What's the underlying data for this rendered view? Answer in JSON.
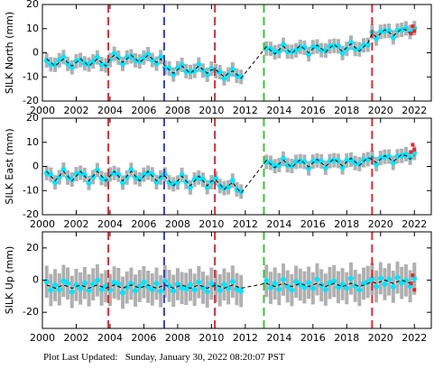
{
  "chart_data": [
    {
      "type": "scatter",
      "ylabel": "SILK North (mm)",
      "xlim": [
        2000,
        2023
      ],
      "xticks": [
        2000,
        2002,
        2004,
        2006,
        2008,
        2010,
        2012,
        2014,
        2016,
        2018,
        2020,
        2022
      ],
      "ylim": [
        -20,
        20
      ],
      "yticks": [
        -20,
        -10,
        0,
        10,
        20
      ],
      "vlines": [
        {
          "x": 2003.9,
          "color": "#e8262b"
        },
        {
          "x": 2007.2,
          "color": "#3340d0"
        },
        {
          "x": 2010.2,
          "color": "#e8262b"
        },
        {
          "x": 2013.1,
          "color": "#3ac43a"
        },
        {
          "x": 2019.5,
          "color": "#e8262b"
        }
      ],
      "x": [
        2000.25,
        2000.5,
        2000.75,
        2001,
        2001.25,
        2001.5,
        2001.75,
        2002,
        2002.25,
        2002.5,
        2002.75,
        2003,
        2003.25,
        2003.5,
        2003.75,
        2004,
        2004.25,
        2004.5,
        2004.75,
        2005,
        2005.25,
        2005.5,
        2005.75,
        2006,
        2006.25,
        2006.5,
        2006.75,
        2007,
        2007.25,
        2007.5,
        2007.75,
        2008,
        2008.25,
        2008.5,
        2008.75,
        2009,
        2009.25,
        2009.5,
        2009.75,
        2010,
        2010.25,
        2010.5,
        2010.75,
        2011,
        2011.25,
        2011.5,
        2011.75,
        2013.25,
        2013.5,
        2013.75,
        2014,
        2014.25,
        2014.5,
        2014.75,
        2015,
        2015.25,
        2015.5,
        2015.75,
        2016,
        2016.25,
        2016.5,
        2016.75,
        2017,
        2017.25,
        2017.5,
        2017.75,
        2018,
        2018.25,
        2018.5,
        2018.75,
        2019,
        2019.25,
        2019.5,
        2019.75,
        2020,
        2020.25,
        2020.5,
        2020.75,
        2021,
        2021.25,
        2021.5,
        2021.75,
        2022
      ],
      "series": [
        {
          "color": "#00e5ff",
          "error": 3,
          "values": [
            -3.2,
            -4.8,
            -5.0,
            -3.1,
            -1.8,
            -4.6,
            -6.0,
            -3.5,
            -3.0,
            -4.4,
            -4.9,
            -3.6,
            -1.9,
            -4.7,
            -5.2,
            -3.0,
            -0.4,
            -2.0,
            -4.6,
            -1.9,
            -1.5,
            -3.1,
            -3.6,
            -2.0,
            -0.6,
            -3.0,
            -4.5,
            -1.8,
            -6.1,
            -6.5,
            -9.0,
            -6.4,
            -5.0,
            -7.6,
            -8.0,
            -7.5,
            -4.9,
            -7.4,
            -9.1,
            -6.6,
            -7.6,
            -8.0,
            -10.6,
            -9.0,
            -6.9,
            -9.5,
            -10.0,
            1.8,
            1.6,
            0.2,
            0.7,
            3.3,
            0.5,
            0.4,
            1.0,
            2.4,
            2.1,
            -0.6,
            2.3,
            2.6,
            1.1,
            0.9,
            2.6,
            2.9,
            2.7,
            -0.1,
            1.6,
            4.2,
            1.6,
            1.4,
            3.1,
            3.3,
            8.6,
            5.9,
            8.7,
            9.0,
            9.1,
            6.4,
            9.2,
            9.5,
            10.1,
            8.6,
            10.2
          ]
        },
        {
          "type": "line",
          "color": "#000000",
          "values": [
            -2.5,
            -4,
            -5.5,
            -4,
            -2.5,
            -4,
            -5.5,
            -4,
            -2.5,
            -4,
            -5.5,
            -4,
            -2.5,
            -4,
            -5.5,
            -2.5,
            -1,
            -2.5,
            -4,
            -2.5,
            -1,
            -2.5,
            -4,
            -2.5,
            -1,
            -2.5,
            -4,
            -2.5,
            -5.5,
            -7,
            -8.5,
            -7,
            -5.5,
            -7,
            -8.5,
            -7,
            -5.5,
            -7,
            -8.5,
            -7,
            -7,
            -8.5,
            -10,
            -8.5,
            -7.5,
            -9,
            -10.5,
            2.5,
            1,
            -0.5,
            1.2,
            2.7,
            1.2,
            -0.3,
            1.5,
            3,
            1.5,
            0,
            1.7,
            3.2,
            1.7,
            0.2,
            2,
            3.5,
            2,
            0.5,
            2.2,
            3.7,
            2.2,
            0.7,
            2.5,
            4,
            8,
            6.5,
            8,
            9.5,
            8.5,
            7,
            8.5,
            10,
            9.5,
            8,
            9.5
          ]
        }
      ],
      "recent": {
        "color": "#e8262b",
        "x": [
          2021.8,
          2021.9,
          2022.0
        ],
        "values": [
          8,
          11,
          9
        ]
      }
    },
    {
      "type": "scatter",
      "ylabel": "SILK East (mm)",
      "xlim": [
        2000,
        2023
      ],
      "xticks": [
        2000,
        2002,
        2004,
        2006,
        2008,
        2010,
        2012,
        2014,
        2016,
        2018,
        2020,
        2022
      ],
      "ylim": [
        -20,
        20
      ],
      "yticks": [
        -20,
        -10,
        0,
        10,
        20
      ],
      "vlines": [
        {
          "x": 2003.9,
          "color": "#e8262b"
        },
        {
          "x": 2007.2,
          "color": "#3340d0"
        },
        {
          "x": 2010.2,
          "color": "#e8262b"
        },
        {
          "x": 2013.1,
          "color": "#3ac43a"
        },
        {
          "x": 2019.5,
          "color": "#e8262b"
        }
      ],
      "x": [
        2000.25,
        2000.5,
        2000.75,
        2001,
        2001.25,
        2001.5,
        2001.75,
        2002,
        2002.25,
        2002.5,
        2002.75,
        2003,
        2003.25,
        2003.5,
        2003.75,
        2004,
        2004.25,
        2004.5,
        2004.75,
        2005,
        2005.25,
        2005.5,
        2005.75,
        2006,
        2006.25,
        2006.5,
        2006.75,
        2007,
        2007.25,
        2007.5,
        2007.75,
        2008,
        2008.25,
        2008.5,
        2008.75,
        2009,
        2009.25,
        2009.5,
        2009.75,
        2010,
        2010.25,
        2010.5,
        2010.75,
        2011,
        2011.25,
        2011.5,
        2011.75,
        2013.25,
        2013.5,
        2013.75,
        2014,
        2014.25,
        2014.5,
        2014.75,
        2015,
        2015.25,
        2015.5,
        2015.75,
        2016,
        2016.25,
        2016.5,
        2016.75,
        2017,
        2017.25,
        2017.5,
        2017.75,
        2018,
        2018.25,
        2018.5,
        2018.75,
        2019,
        2019.25,
        2019.5,
        2019.75,
        2020,
        2020.25,
        2020.5,
        2020.75,
        2021,
        2021.25,
        2021.5,
        2021.75,
        2022
      ],
      "series": [
        {
          "color": "#00e5ff",
          "error": 3,
          "values": [
            -2.7,
            -3.4,
            -6.6,
            -4.5,
            -1.3,
            -4.6,
            -5.4,
            -3.2,
            -2.6,
            -3.5,
            -6.8,
            -4.4,
            -1.5,
            -4.8,
            -5.5,
            -3.3,
            -2.7,
            -3.4,
            -6.7,
            -4.6,
            -1.4,
            -4.5,
            -5.3,
            -3.4,
            -2.6,
            -3.3,
            -6.5,
            -4.6,
            -3.3,
            -6.6,
            -7.4,
            -6.7,
            -3.5,
            -6.4,
            -8.7,
            -5.4,
            -4.6,
            -5.5,
            -8.6,
            -6.5,
            -4.9,
            -8.1,
            -9.0,
            -8.6,
            -5.9,
            -9.5,
            -10.4,
            1.9,
            1.5,
            0.1,
            0.6,
            3.2,
            0.5,
            0.2,
            1.9,
            2.2,
            1.9,
            -0.8,
            2.0,
            2.5,
            2.1,
            -0.5,
            2.2,
            2.6,
            2.3,
            -0.4,
            2.5,
            2.8,
            1.4,
            1.0,
            2.6,
            3.0,
            3.6,
            0.9,
            3.5,
            4.0,
            4.1,
            1.5,
            4.2,
            4.4,
            5.1,
            3.6,
            5.6
          ]
        },
        {
          "type": "line",
          "color": "#000000",
          "values": [
            -2,
            -4,
            -6,
            -4,
            -2,
            -4,
            -6,
            -4,
            -2,
            -4,
            -6,
            -4,
            -2,
            -4,
            -6,
            -4,
            -2,
            -4,
            -6,
            -4,
            -2,
            -4,
            -6,
            -4,
            -2,
            -4,
            -6,
            -4,
            -4,
            -6,
            -8,
            -6,
            -4,
            -6,
            -8,
            -6,
            -4,
            -6,
            -8,
            -6,
            -5.5,
            -7.5,
            -9.5,
            -8,
            -6.5,
            -9,
            -11,
            2.5,
            1,
            -0.5,
            1.1,
            2.6,
            1.1,
            -0.4,
            1.3,
            2.8,
            1.3,
            -0.2,
            1.5,
            3,
            1.5,
            0,
            1.7,
            3.2,
            1.7,
            0.2,
            1.9,
            3.4,
            1.9,
            0.4,
            2.1,
            3.6,
            3,
            1.5,
            3,
            4.5,
            3.5,
            2,
            3.5,
            5,
            4.5,
            3,
            4.5
          ]
        }
      ],
      "recent": {
        "color": "#e8262b",
        "x": [
          2021.8,
          2021.9,
          2022.0
        ],
        "values": [
          6,
          9,
          7
        ]
      }
    },
    {
      "type": "scatter",
      "ylabel": "SILK Up (mm)",
      "xlim": [
        2000,
        2023
      ],
      "xticks": [
        2000,
        2002,
        2004,
        2006,
        2008,
        2010,
        2012,
        2014,
        2016,
        2018,
        2020,
        2022
      ],
      "ylim": [
        -30,
        30
      ],
      "yticks": [
        -20,
        0,
        20
      ],
      "vlines": [
        {
          "x": 2003.9,
          "color": "#e8262b"
        },
        {
          "x": 2007.2,
          "color": "#3340d0"
        },
        {
          "x": 2010.2,
          "color": "#e8262b"
        },
        {
          "x": 2013.1,
          "color": "#3ac43a"
        },
        {
          "x": 2019.5,
          "color": "#e8262b"
        }
      ],
      "x": [
        2000.25,
        2000.5,
        2000.75,
        2001,
        2001.25,
        2001.5,
        2001.75,
        2002,
        2002.25,
        2002.5,
        2002.75,
        2003,
        2003.25,
        2003.5,
        2003.75,
        2004,
        2004.25,
        2004.5,
        2004.75,
        2005,
        2005.25,
        2005.5,
        2005.75,
        2006,
        2006.25,
        2006.5,
        2006.75,
        2007,
        2007.25,
        2007.5,
        2007.75,
        2008,
        2008.25,
        2008.5,
        2008.75,
        2009,
        2009.25,
        2009.5,
        2009.75,
        2010,
        2010.25,
        2010.5,
        2010.75,
        2011,
        2011.25,
        2011.5,
        2011.75,
        2013.25,
        2013.5,
        2013.75,
        2014,
        2014.25,
        2014.5,
        2014.75,
        2015,
        2015.25,
        2015.5,
        2015.75,
        2016,
        2016.25,
        2016.5,
        2016.75,
        2017,
        2017.25,
        2017.5,
        2017.75,
        2018,
        2018.25,
        2018.5,
        2018.75,
        2019,
        2019.25,
        2019.5,
        2019.75,
        2020,
        2020.25,
        2020.5,
        2020.75,
        2021,
        2021.25,
        2021.5,
        2021.75,
        2022
      ],
      "series": [
        {
          "color": "#00e5ff",
          "error": 10,
          "values": [
            -1.0,
            -6.2,
            -3.1,
            -5.8,
            -0.5,
            -2.1,
            -7.3,
            -3.0,
            -5.2,
            -1.8,
            -6.4,
            -2.6,
            -0.2,
            -5.9,
            -3.8,
            -6.1,
            -1.5,
            -2.4,
            -7.8,
            -4.6,
            -2.2,
            -6.5,
            -3.7,
            -1.3,
            -4.1,
            -5.8,
            -2.2,
            -6.9,
            -0.8,
            -3.6,
            -6.6,
            -2.5,
            -4.9,
            -5.4,
            -2.9,
            -6.0,
            -1.2,
            -4.7,
            -7.1,
            -2.2,
            -3.8,
            -6.3,
            -2.7,
            -5.1,
            -0.9,
            -5.6,
            -6.8,
            -0.4,
            -4.8,
            -2.1,
            -5.6,
            0.3,
            -3.9,
            -6.2,
            -1.0,
            -2.8,
            -4.5,
            -1.6,
            -5.1,
            0.5,
            -3.2,
            -5.9,
            -1.8,
            -0.6,
            -4.4,
            -2.5,
            -5.0,
            1.0,
            -3.6,
            -6.1,
            -2.2,
            -1.1,
            0.8,
            -3.9,
            1.2,
            -2.5,
            0.4,
            -4.1,
            1.6,
            -1.7,
            -0.2,
            -3.8,
            0.9
          ]
        },
        {
          "type": "line",
          "color": "#000000",
          "values": [
            -3,
            -4,
            -5,
            -4,
            -3,
            -4,
            -5,
            -4,
            -3,
            -4,
            -5,
            -4,
            -3,
            -4,
            -5,
            -4,
            -3,
            -4,
            -5,
            -4,
            -3,
            -4,
            -5,
            -4,
            -3,
            -4,
            -5,
            -4,
            -3,
            -4,
            -5,
            -4,
            -3,
            -4,
            -5,
            -4,
            -3,
            -4,
            -5,
            -4,
            -3,
            -4,
            -5,
            -4,
            -3,
            -4,
            -5,
            -2,
            -3,
            -4,
            -3,
            -2,
            -3,
            -4,
            -3,
            -2,
            -3,
            -4,
            -3,
            -2,
            -3,
            -4,
            -3,
            -2,
            -3,
            -4,
            -3,
            -2,
            -3,
            -4,
            -3,
            -2,
            -1,
            -2,
            -1,
            0,
            -1,
            -2,
            -1,
            0,
            -1,
            -2,
            -1
          ]
        }
      ],
      "recent": {
        "color": "#e8262b",
        "x": [
          2021.8,
          2021.9,
          2022.0
        ],
        "values": [
          -2,
          3,
          -6
        ]
      }
    }
  ],
  "footer": "Plot Last Updated:   Sunday, January 30, 2022 08:20:07 PST"
}
